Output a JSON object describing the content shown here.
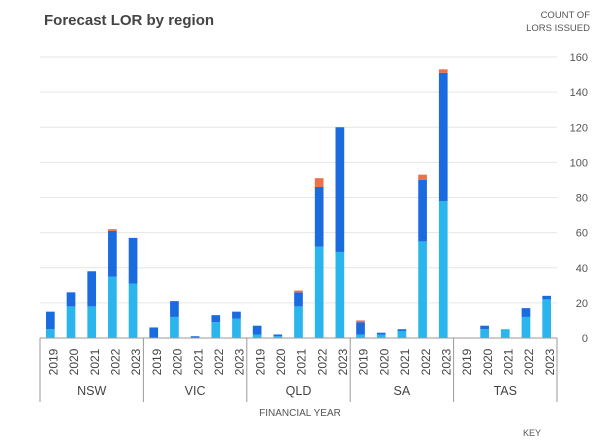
{
  "chart_data": {
    "type": "bar",
    "stacked": true,
    "title": "Forecast LOR by region",
    "ylabel_lines": [
      "COUNT OF",
      "LORS ISSUED"
    ],
    "xlabel": "FINANCIAL YEAR",
    "key_label": "KEY",
    "ylim": [
      0,
      160
    ],
    "yticks": [
      "0",
      "20",
      "40",
      "60",
      "80",
      "100",
      "120",
      "140",
      "160"
    ],
    "grid": true,
    "y_axis_side": "right",
    "groups": [
      {
        "region": "NSW",
        "years": [
          "2019",
          "2020",
          "2021",
          "2022",
          "2023"
        ]
      },
      {
        "region": "VIC",
        "years": [
          "2019",
          "2020",
          "2021",
          "2022",
          "2023"
        ]
      },
      {
        "region": "QLD",
        "years": [
          "2019",
          "2020",
          "2021",
          "2022",
          "2023"
        ]
      },
      {
        "region": "SA",
        "years": [
          "2019",
          "2020",
          "2021",
          "2022",
          "2023"
        ]
      },
      {
        "region": "TAS",
        "years": [
          "2019",
          "2020",
          "2021",
          "2022",
          "2023"
        ]
      }
    ],
    "series": [
      {
        "color": "#2ab6ec",
        "values": [
          5,
          18,
          18,
          35,
          31,
          0,
          12,
          0,
          9,
          11,
          2,
          1,
          18,
          52,
          49,
          2,
          2,
          4,
          55,
          78,
          0,
          5,
          5,
          12,
          22
        ]
      },
      {
        "color": "#1a6ae0",
        "values": [
          10,
          8,
          20,
          26,
          26,
          6,
          9,
          1,
          4,
          4,
          5,
          1,
          8,
          34,
          71,
          7,
          1,
          1,
          35,
          73,
          0,
          2,
          0,
          5,
          2
        ]
      },
      {
        "color": "#ee7048",
        "values": [
          0,
          0,
          0,
          1,
          0,
          0,
          0,
          0,
          0,
          0,
          0,
          0,
          1,
          5,
          0,
          1,
          0,
          0,
          3,
          2,
          0,
          0,
          0,
          0,
          0
        ]
      }
    ]
  },
  "colors": {
    "grid": "#e6e6e6",
    "axis": "#999999",
    "background": "#ffffff"
  }
}
